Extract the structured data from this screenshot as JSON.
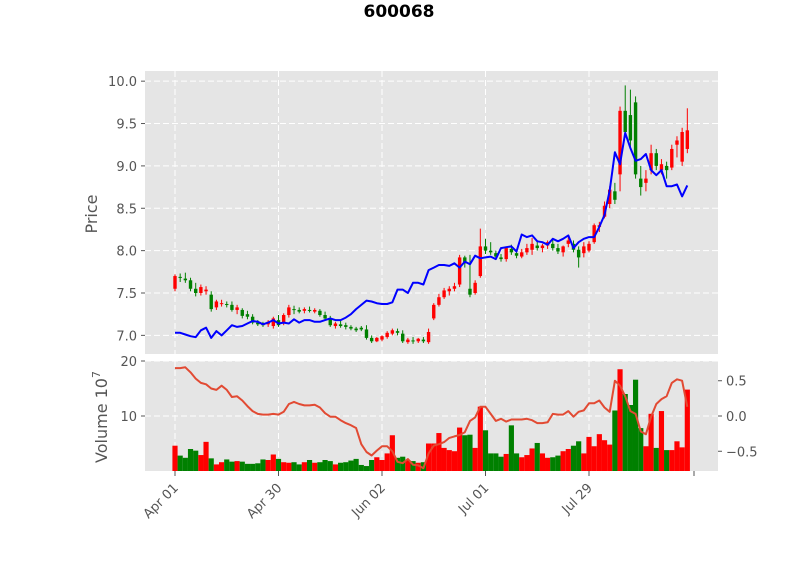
{
  "chart_data": {
    "type": "candlestick",
    "title": "600068",
    "price_panel": {
      "ylabel": "Price",
      "yticks": [
        "7.0",
        "7.5",
        "8.0",
        "8.5",
        "9.0",
        "9.5",
        "10.0"
      ],
      "ylim": [
        6.78,
        10.12
      ]
    },
    "volume_panel": {
      "ylabel": "Volume  10",
      "ylabel_exponent": "7",
      "yticks": [
        "10",
        "20"
      ],
      "ylim": [
        0,
        20
      ],
      "right_yticks": [
        "−0.5",
        "0.0",
        "0.5"
      ],
      "right_ylim": [
        -0.78,
        0.78
      ]
    },
    "xticks": [
      {
        "label": "Apr 01",
        "index": 0
      },
      {
        "label": "Apr 30",
        "index": 20
      },
      {
        "label": "Jun 02",
        "index": 40
      },
      {
        "label": "Jul 01",
        "index": 60
      },
      {
        "label": "Jul 29",
        "index": 80
      }
    ],
    "n_days": 100,
    "ohlc": [
      [
        7.55,
        7.72,
        7.52,
        7.7
      ],
      [
        7.69,
        7.73,
        7.63,
        7.68
      ],
      [
        7.67,
        7.74,
        7.62,
        7.65
      ],
      [
        7.65,
        7.68,
        7.52,
        7.55
      ],
      [
        7.55,
        7.62,
        7.46,
        7.5
      ],
      [
        7.5,
        7.6,
        7.47,
        7.57
      ],
      [
        7.52,
        7.58,
        7.48,
        7.54
      ],
      [
        7.48,
        7.52,
        7.28,
        7.31
      ],
      [
        7.33,
        7.42,
        7.3,
        7.4
      ],
      [
        7.38,
        7.42,
        7.34,
        7.38
      ],
      [
        7.37,
        7.4,
        7.33,
        7.36
      ],
      [
        7.36,
        7.4,
        7.28,
        7.3
      ],
      [
        7.3,
        7.36,
        7.25,
        7.33
      ],
      [
        7.3,
        7.32,
        7.2,
        7.23
      ],
      [
        7.25,
        7.29,
        7.19,
        7.22
      ],
      [
        7.22,
        7.25,
        7.13,
        7.15
      ],
      [
        7.15,
        7.18,
        7.11,
        7.13
      ],
      [
        7.14,
        7.16,
        7.1,
        7.12
      ],
      [
        7.13,
        7.18,
        7.1,
        7.16
      ],
      [
        7.11,
        7.22,
        7.08,
        7.2
      ],
      [
        7.18,
        7.24,
        7.1,
        7.12
      ],
      [
        7.14,
        7.26,
        7.12,
        7.24
      ],
      [
        7.24,
        7.36,
        7.21,
        7.33
      ],
      [
        7.31,
        7.35,
        7.25,
        7.3
      ],
      [
        7.3,
        7.33,
        7.26,
        7.28
      ],
      [
        7.29,
        7.33,
        7.26,
        7.31
      ],
      [
        7.3,
        7.34,
        7.27,
        7.29
      ],
      [
        7.28,
        7.32,
        7.26,
        7.3
      ],
      [
        7.29,
        7.31,
        7.22,
        7.24
      ],
      [
        7.24,
        7.28,
        7.18,
        7.2
      ],
      [
        7.2,
        7.23,
        7.1,
        7.12
      ],
      [
        7.11,
        7.16,
        7.08,
        7.14
      ],
      [
        7.13,
        7.17,
        7.09,
        7.11
      ],
      [
        7.12,
        7.15,
        7.07,
        7.1
      ],
      [
        7.1,
        7.12,
        7.06,
        7.08
      ],
      [
        7.08,
        7.1,
        7.04,
        7.06
      ],
      [
        7.09,
        7.11,
        7.05,
        7.07
      ],
      [
        7.07,
        7.12,
        6.95,
        6.97
      ],
      [
        6.97,
        7.0,
        6.91,
        6.93
      ],
      [
        6.93,
        6.98,
        6.92,
        6.97
      ],
      [
        6.95,
        7.0,
        6.93,
        6.99
      ],
      [
        6.98,
        7.05,
        6.96,
        7.03
      ],
      [
        7.02,
        7.08,
        7.0,
        7.06
      ],
      [
        7.05,
        7.08,
        7.0,
        7.03
      ],
      [
        7.02,
        7.06,
        6.91,
        6.93
      ],
      [
        6.92,
        6.97,
        6.9,
        6.95
      ],
      [
        6.94,
        6.98,
        6.9,
        6.93
      ],
      [
        6.93,
        6.97,
        6.91,
        6.96
      ],
      [
        6.95,
        6.98,
        6.91,
        6.93
      ],
      [
        6.92,
        7.08,
        6.9,
        7.04
      ],
      [
        7.2,
        7.38,
        7.18,
        7.36
      ],
      [
        7.36,
        7.49,
        7.34,
        7.45
      ],
      [
        7.45,
        7.56,
        7.43,
        7.53
      ],
      [
        7.52,
        7.58,
        7.47,
        7.55
      ],
      [
        7.55,
        7.62,
        7.52,
        7.58
      ],
      [
        7.6,
        7.95,
        7.57,
        7.92
      ],
      [
        7.92,
        7.94,
        7.8,
        7.85
      ],
      [
        7.55,
        7.95,
        7.45,
        7.48
      ],
      [
        7.5,
        7.65,
        7.48,
        7.62
      ],
      [
        7.7,
        8.26,
        7.68,
        8.05
      ],
      [
        8.05,
        8.14,
        7.96,
        8.0
      ],
      [
        8.0,
        8.1,
        7.95,
        7.98
      ],
      [
        7.97,
        8.0,
        7.9,
        7.93
      ],
      [
        7.92,
        7.96,
        7.87,
        7.9
      ],
      [
        7.9,
        8.05,
        7.87,
        8.03
      ],
      [
        8.02,
        8.07,
        7.95,
        7.98
      ],
      [
        7.97,
        8.0,
        7.91,
        7.94
      ],
      [
        7.93,
        8.02,
        7.91,
        7.98
      ],
      [
        7.98,
        8.08,
        7.95,
        8.03
      ],
      [
        8.01,
        8.15,
        7.95,
        8.08
      ],
      [
        8.06,
        8.12,
        8.0,
        8.03
      ],
      [
        8.03,
        8.08,
        7.98,
        8.06
      ],
      [
        8.06,
        8.12,
        8.02,
        8.1
      ],
      [
        8.08,
        8.13,
        8.0,
        8.03
      ],
      [
        8.03,
        8.08,
        7.96,
        7.99
      ],
      [
        7.98,
        8.06,
        7.93,
        8.05
      ],
      [
        8.08,
        8.16,
        8.04,
        8.12
      ],
      [
        8.08,
        8.12,
        7.98,
        8.01
      ],
      [
        8.01,
        8.05,
        7.8,
        7.92
      ],
      [
        7.97,
        8.1,
        7.92,
        8.05
      ],
      [
        8.0,
        8.11,
        7.98,
        8.08
      ],
      [
        8.1,
        8.32,
        8.08,
        8.3
      ],
      [
        8.28,
        8.34,
        8.22,
        8.3
      ],
      [
        8.4,
        8.58,
        8.38,
        8.53
      ],
      [
        8.55,
        8.76,
        8.5,
        8.72
      ],
      [
        8.7,
        8.8,
        8.55,
        8.6
      ],
      [
        8.9,
        9.7,
        8.7,
        9.65
      ],
      [
        9.65,
        9.95,
        9.35,
        9.4
      ],
      [
        9.6,
        9.9,
        9.2,
        9.3
      ],
      [
        9.75,
        9.82,
        8.85,
        8.9
      ],
      [
        8.85,
        9.0,
        8.65,
        8.75
      ],
      [
        8.8,
        8.95,
        8.7,
        8.85
      ],
      [
        8.95,
        9.25,
        8.9,
        9.15
      ],
      [
        9.15,
        9.2,
        8.95,
        9.0
      ],
      [
        8.95,
        9.08,
        8.9,
        9.02
      ],
      [
        9.0,
        9.05,
        8.85,
        8.95
      ],
      [
        8.98,
        9.25,
        8.95,
        9.2
      ],
      [
        9.25,
        9.35,
        9.1,
        9.3
      ],
      [
        9.05,
        9.45,
        9.0,
        9.4
      ],
      [
        9.2,
        9.68,
        9.15,
        9.42
      ]
    ],
    "volume": [
      4.6,
      2.8,
      2.4,
      4.0,
      3.7,
      2.9,
      5.3,
      2.3,
      1.2,
      1.6,
      2.1,
      1.7,
      1.8,
      1.7,
      1.3,
      1.3,
      1.4,
      2.1,
      2.0,
      3.0,
      2.2,
      1.6,
      1.5,
      1.6,
      1.2,
      1.6,
      2.0,
      1.5,
      1.6,
      2.0,
      1.8,
      1.2,
      1.5,
      1.6,
      1.9,
      2.2,
      1.1,
      0.9,
      2.0,
      2.5,
      2.0,
      3.2,
      6.5,
      2.4,
      2.6,
      2.0,
      1.8,
      1.5,
      1.6,
      5.0,
      5.0,
      6.9,
      4.2,
      3.8,
      3.6,
      7.9,
      6.5,
      6.6,
      4.2,
      11.7,
      7.4,
      3.2,
      3.2,
      2.6,
      3.1,
      8.3,
      3.2,
      2.5,
      2.9,
      4.1,
      5.1,
      3.2,
      2.4,
      2.5,
      2.8,
      3.6,
      4.0,
      4.6,
      5.4,
      3.2,
      6.2,
      4.5,
      6.7,
      5.6,
      4.8,
      11.0,
      18.5,
      14.0,
      12.0,
      16.6,
      7.8,
      4.5,
      10.4,
      4.2,
      10.9,
      3.8,
      3.8,
      5.4,
      4.3,
      14.8
    ],
    "up_color": "#ff0000",
    "down_color": "#008000",
    "ma": {
      "color": "#0000ff",
      "values": [
        7.03,
        7.03,
        7.01,
        6.99,
        6.98,
        7.06,
        7.09,
        6.97,
        7.05,
        7.0,
        7.06,
        7.12,
        7.1,
        7.11,
        7.14,
        7.17,
        7.16,
        7.13,
        7.15,
        7.18,
        7.14,
        7.15,
        7.14,
        7.19,
        7.15,
        7.18,
        7.18,
        7.16,
        7.16,
        7.18,
        7.2,
        7.18,
        7.18,
        7.21,
        7.25,
        7.31,
        7.36,
        7.41,
        7.4,
        7.38,
        7.37,
        7.37,
        7.39,
        7.54,
        7.54,
        7.5,
        7.62,
        7.62,
        7.6,
        7.77,
        7.8,
        7.83,
        7.83,
        7.82,
        7.85,
        7.8,
        7.87,
        7.84,
        7.94,
        7.91,
        7.92,
        7.93,
        7.9,
        8.03,
        8.04,
        8.05,
        7.99,
        8.19,
        8.16,
        8.18,
        8.11,
        8.1,
        8.07,
        8.14,
        8.11,
        8.14,
        8.18,
        8.03,
        8.1,
        8.14,
        8.16,
        8.16,
        8.28,
        8.42,
        8.71,
        9.16,
        9.02,
        9.39,
        9.21,
        9.06,
        9.08,
        9.14,
        8.95,
        8.89,
        8.95,
        8.76,
        8.76,
        8.78,
        8.64,
        8.77
      ]
    },
    "indicator": {
      "color": "#e24a33",
      "values": [
        0.68,
        0.68,
        0.69,
        0.62,
        0.53,
        0.47,
        0.45,
        0.39,
        0.37,
        0.43,
        0.37,
        0.27,
        0.28,
        0.22,
        0.14,
        0.07,
        0.03,
        0.02,
        0.02,
        0.03,
        0.02,
        0.06,
        0.17,
        0.2,
        0.17,
        0.15,
        0.15,
        0.16,
        0.12,
        0.04,
        -0.01,
        -0.01,
        -0.06,
        -0.1,
        -0.13,
        -0.17,
        -0.4,
        -0.51,
        -0.56,
        -0.49,
        -0.43,
        -0.43,
        -0.5,
        -0.65,
        -0.67,
        -0.61,
        -0.69,
        -0.7,
        -0.74,
        -0.53,
        -0.42,
        -0.4,
        -0.37,
        -0.31,
        -0.29,
        -0.27,
        -0.23,
        -0.07,
        -0.02,
        0.13,
        0.13,
        0.03,
        -0.07,
        -0.04,
        -0.08,
        -0.05,
        -0.05,
        -0.05,
        -0.04,
        -0.06,
        -0.1,
        -0.1,
        -0.09,
        0.03,
        0.02,
        0.02,
        0.07,
        -0.01,
        0.06,
        0.08,
        0.18,
        0.18,
        0.22,
        0.12,
        0.06,
        0.5,
        0.43,
        0.28,
        0.07,
        0.03,
        -0.22,
        -0.26,
        -0.01,
        0.17,
        0.24,
        0.28,
        0.47,
        0.52,
        0.5,
        0.13
      ]
    }
  }
}
